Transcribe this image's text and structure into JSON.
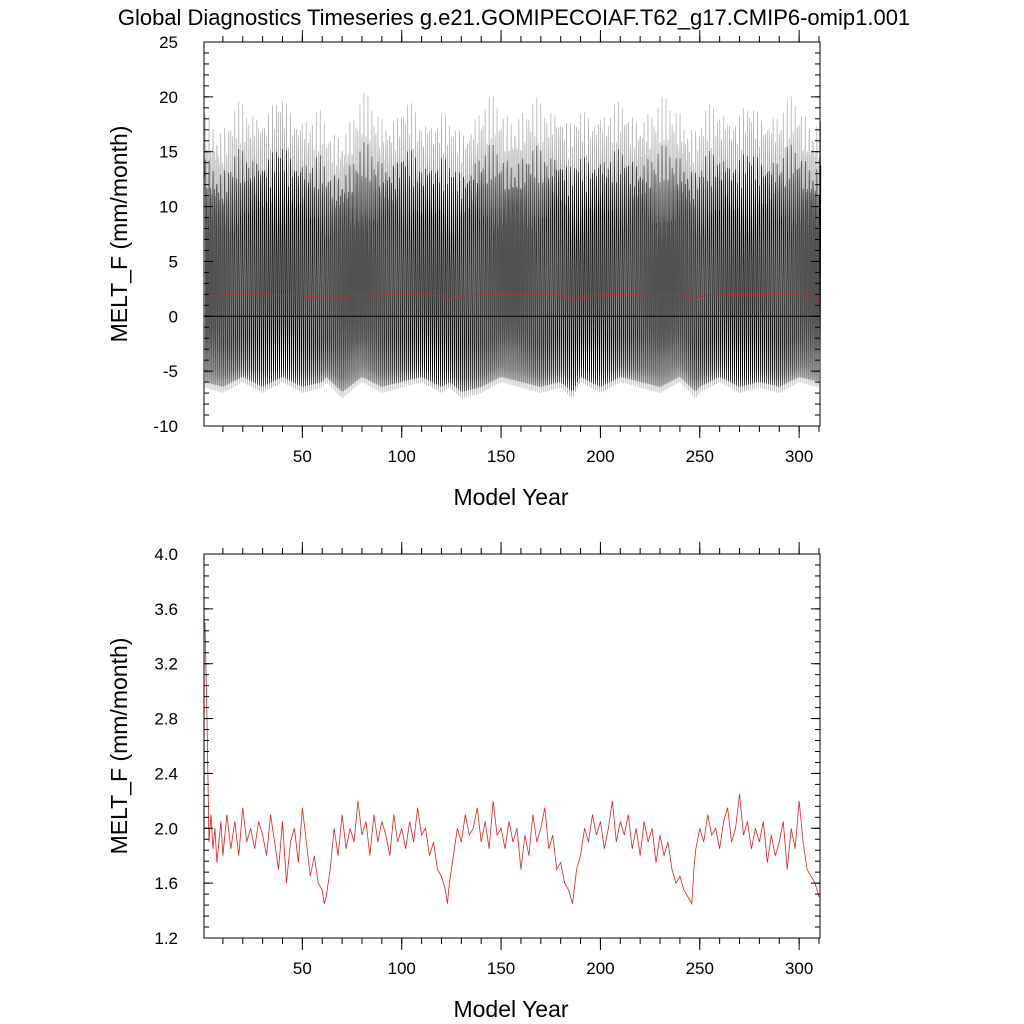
{
  "title": "Global Diagnostics Timeseries g.e21.GOMIPECOIAF.T62_g17.CMIP6-omip1.001",
  "colors": {
    "monthly": "#000000",
    "monthly_light": "#a0a0a0",
    "annual": "#e02020",
    "zero_line": "#000000"
  },
  "chart_data": [
    {
      "type": "line",
      "title": "",
      "xlabel": "Model Year",
      "ylabel": "MELT_F (mm/month)",
      "xlim": [
        0.5,
        310.5
      ],
      "ylim": [
        -10,
        25
      ],
      "x_ticks": [
        50,
        100,
        150,
        200,
        250,
        300
      ],
      "y_ticks": [
        25,
        20,
        15,
        10,
        5,
        0,
        -5,
        -10
      ],
      "reference_line": 0,
      "grid": false,
      "legend": "none",
      "monthly_envelope": {
        "x": [
          1,
          10,
          20,
          30,
          40,
          50,
          60,
          62,
          70,
          80,
          90,
          100,
          110,
          120,
          124,
          130,
          140,
          150,
          160,
          170,
          180,
          186,
          190,
          200,
          210,
          220,
          230,
          240,
          248,
          250,
          260,
          270,
          280,
          290,
          300,
          310
        ],
        "max": [
          20.5,
          19,
          20,
          20.5,
          21,
          20,
          19,
          18,
          19,
          20.5,
          20,
          20.5,
          19.5,
          20,
          18.5,
          19,
          20.5,
          20,
          20.5,
          20,
          21,
          19,
          19.5,
          20.5,
          20,
          20.5,
          20,
          20.5,
          19,
          19,
          20.5,
          20,
          20.5,
          20,
          20.5,
          19.5
        ],
        "min": [
          -6.5,
          -7,
          -6,
          -7,
          -6,
          -7,
          -6.5,
          -6,
          -7.5,
          -6,
          -7,
          -6.5,
          -6,
          -7,
          -6.5,
          -7.5,
          -7,
          -6,
          -6.5,
          -7,
          -6.5,
          -7.5,
          -6,
          -7,
          -6,
          -6.5,
          -7,
          -6,
          -7.5,
          -7,
          -6,
          -7,
          -6.5,
          -7,
          -6,
          -6.5
        ]
      },
      "annual_mean": {
        "x": [
          1,
          5,
          10,
          20,
          30,
          40,
          50,
          60,
          62,
          70,
          80,
          90,
          100,
          110,
          120,
          124,
          130,
          140,
          150,
          160,
          170,
          180,
          186,
          190,
          200,
          210,
          220,
          230,
          240,
          248,
          250,
          260,
          270,
          280,
          290,
          300,
          310
        ],
        "y": [
          2.0,
          1.9,
          1.95,
          1.95,
          1.95,
          1.9,
          1.9,
          1.7,
          1.5,
          1.85,
          1.9,
          1.95,
          1.95,
          1.95,
          1.9,
          1.5,
          1.85,
          1.95,
          1.95,
          1.95,
          1.95,
          1.95,
          1.5,
          1.8,
          1.95,
          2.0,
          1.95,
          1.9,
          1.9,
          1.5,
          1.8,
          1.95,
          2.0,
          2.0,
          1.95,
          1.95,
          1.6
        ]
      }
    },
    {
      "type": "line",
      "title": "",
      "xlabel": "Model Year",
      "ylabel": "MELT_F (mm/month)",
      "xlim": [
        0.5,
        310.5
      ],
      "ylim": [
        1.2,
        4.0
      ],
      "x_ticks": [
        50,
        100,
        150,
        200,
        250,
        300
      ],
      "y_ticks": [
        "4.0",
        "3.6",
        "3.2",
        "2.8",
        "2.4",
        "2.0",
        "1.6",
        "1.2"
      ],
      "grid": false,
      "legend": "none",
      "series": [
        {
          "x": [
            1,
            2,
            3,
            4,
            5,
            6,
            7,
            8,
            9,
            10,
            12,
            14,
            16,
            18,
            20,
            22,
            24,
            26,
            28,
            30,
            32,
            34,
            36,
            38,
            40,
            42,
            44,
            46,
            48,
            50,
            52,
            54,
            56,
            58,
            60,
            61,
            62,
            64,
            66,
            68,
            70,
            72,
            74,
            76,
            78,
            80,
            82,
            84,
            86,
            88,
            90,
            92,
            94,
            96,
            98,
            100,
            102,
            104,
            106,
            108,
            110,
            112,
            114,
            116,
            118,
            120,
            122,
            123,
            124,
            126,
            128,
            130,
            132,
            134,
            136,
            138,
            140,
            142,
            144,
            146,
            148,
            150,
            152,
            154,
            156,
            158,
            160,
            162,
            164,
            166,
            168,
            170,
            172,
            174,
            176,
            178,
            180,
            182,
            184,
            185,
            186,
            188,
            190,
            192,
            194,
            196,
            198,
            200,
            202,
            204,
            206,
            208,
            210,
            212,
            214,
            216,
            218,
            220,
            222,
            224,
            226,
            228,
            230,
            232,
            234,
            236,
            238,
            240,
            242,
            244,
            246,
            247,
            248,
            250,
            252,
            254,
            256,
            258,
            260,
            262,
            264,
            266,
            268,
            270,
            272,
            274,
            276,
            278,
            280,
            282,
            284,
            286,
            288,
            290,
            292,
            294,
            296,
            298,
            300,
            302,
            304,
            306,
            308,
            310
          ],
          "y": [
            3.5,
            2.8,
            1.9,
            2.1,
            1.85,
            2.0,
            1.75,
            1.9,
            2.05,
            1.8,
            2.1,
            1.85,
            2.05,
            1.8,
            2.15,
            1.9,
            2.0,
            1.85,
            2.05,
            1.95,
            1.8,
            2.1,
            1.9,
            1.7,
            2.05,
            1.6,
            1.9,
            2.0,
            1.75,
            2.15,
            1.9,
            1.65,
            1.8,
            1.6,
            1.55,
            1.45,
            1.5,
            1.7,
            2.0,
            1.8,
            2.1,
            1.85,
            2.0,
            1.9,
            2.2,
            1.95,
            2.05,
            1.8,
            2.1,
            1.9,
            2.05,
            1.95,
            1.8,
            2.1,
            1.9,
            2.0,
            1.85,
            2.05,
            1.9,
            2.15,
            1.95,
            2.0,
            1.8,
            1.9,
            1.7,
            1.65,
            1.55,
            1.45,
            1.6,
            1.8,
            2.0,
            1.9,
            2.1,
            1.95,
            2.0,
            2.15,
            1.9,
            2.05,
            1.85,
            2.2,
            1.95,
            2.0,
            1.85,
            2.05,
            1.9,
            2.0,
            1.7,
            1.95,
            1.8,
            2.1,
            1.9,
            2.0,
            2.15,
            1.85,
            1.95,
            1.7,
            1.75,
            1.6,
            1.55,
            1.5,
            1.45,
            1.7,
            1.8,
            2.0,
            1.9,
            2.1,
            1.95,
            2.05,
            1.85,
            2.0,
            2.2,
            1.9,
            2.05,
            1.95,
            2.1,
            1.85,
            2.0,
            1.8,
            2.05,
            1.9,
            2.0,
            1.75,
            1.95,
            1.8,
            1.9,
            1.7,
            1.6,
            1.65,
            1.55,
            1.5,
            1.45,
            1.7,
            1.85,
            2.0,
            1.9,
            2.1,
            1.95,
            2.0,
            1.85,
            2.05,
            2.15,
            1.9,
            2.0,
            2.25,
            1.95,
            2.05,
            1.85,
            2.0,
            1.9,
            2.05,
            1.75,
            1.95,
            1.8,
            1.9,
            2.05,
            1.7,
            2.0,
            1.85,
            2.2,
            1.9,
            1.7,
            1.65,
            1.6,
            1.5
          ]
        }
      ]
    }
  ]
}
